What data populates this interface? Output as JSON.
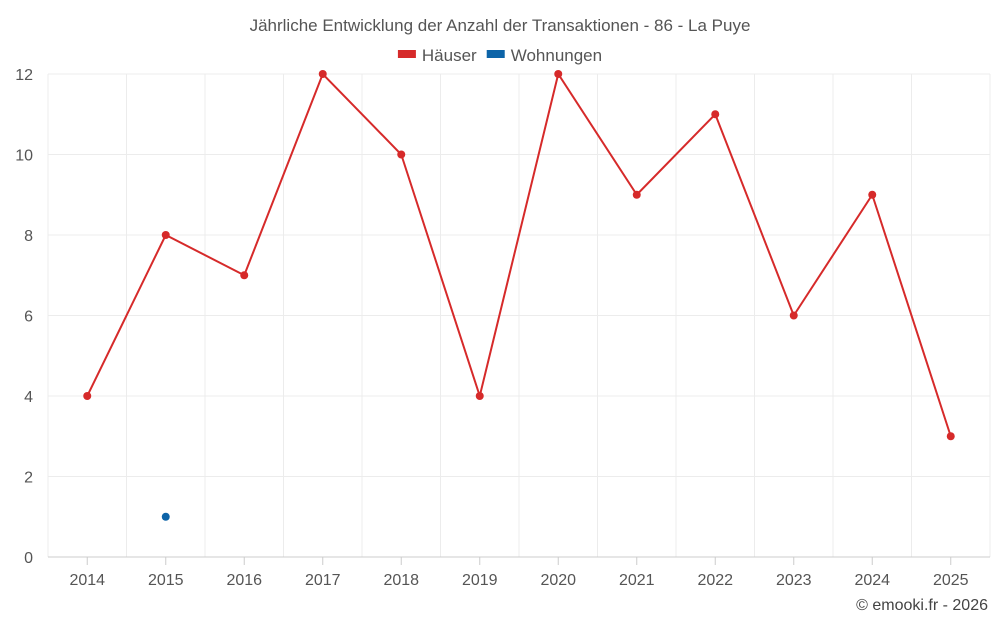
{
  "chart_data": {
    "type": "line",
    "title": "Jährliche Entwicklung der Anzahl der Transaktionen - 86 - La Puye",
    "categories": [
      "2014",
      "2015",
      "2016",
      "2017",
      "2018",
      "2019",
      "2020",
      "2021",
      "2022",
      "2023",
      "2024",
      "2025"
    ],
    "series": [
      {
        "name": "Häuser",
        "color": "#d62a2a",
        "values": [
          4,
          8,
          7,
          12,
          10,
          4,
          12,
          9,
          11,
          6,
          9,
          3
        ]
      },
      {
        "name": "Wohnungen",
        "color": "#0d64a8",
        "values": [
          null,
          1,
          null,
          null,
          null,
          null,
          null,
          null,
          null,
          null,
          null,
          null
        ]
      }
    ],
    "ylim": [
      0,
      12
    ],
    "yticks": [
      0,
      2,
      4,
      6,
      8,
      10,
      12
    ],
    "legend_position": "top-center",
    "grid": true
  },
  "credit": "© emooki.fr - 2026"
}
